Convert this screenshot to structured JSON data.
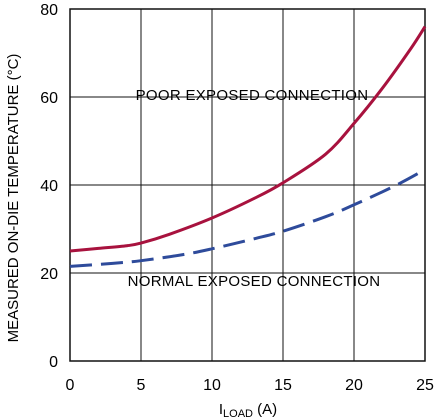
{
  "chart_data": {
    "type": "line",
    "xlabel_main": "I",
    "xlabel_sub": "LOAD",
    "xlabel_unit": " (A)",
    "ylabel": "MEASURED ON-DIE TEMPERATURE (°C)",
    "xlim": [
      0,
      25
    ],
    "ylim": [
      0,
      80
    ],
    "xticks": [
      0,
      5,
      10,
      15,
      20,
      25
    ],
    "yticks": [
      0,
      20,
      40,
      60,
      80
    ],
    "grid": true,
    "annotations": {
      "poor": "POOR EXPOSED CONNECTION",
      "normal": "NORMAL EXPOSED CONNECTION"
    },
    "series": [
      {
        "key": "poor",
        "style": "solid",
        "color": "#a8123e",
        "x": [
          0,
          2,
          4,
          5,
          7,
          10,
          13,
          15,
          18,
          20,
          22,
          24,
          25
        ],
        "y": [
          25,
          25.6,
          26.2,
          26.8,
          28.8,
          32.5,
          37,
          40.5,
          47,
          54,
          62,
          71,
          76
        ]
      },
      {
        "key": "normal",
        "style": "dashed",
        "color": "#2e4b9b",
        "x": [
          0,
          3,
          5,
          8,
          10,
          13,
          15,
          18,
          20,
          23,
          25
        ],
        "y": [
          21.5,
          22.2,
          22.8,
          24.2,
          25.5,
          27.8,
          29.5,
          32.8,
          35.5,
          40,
          43.5
        ]
      }
    ]
  }
}
